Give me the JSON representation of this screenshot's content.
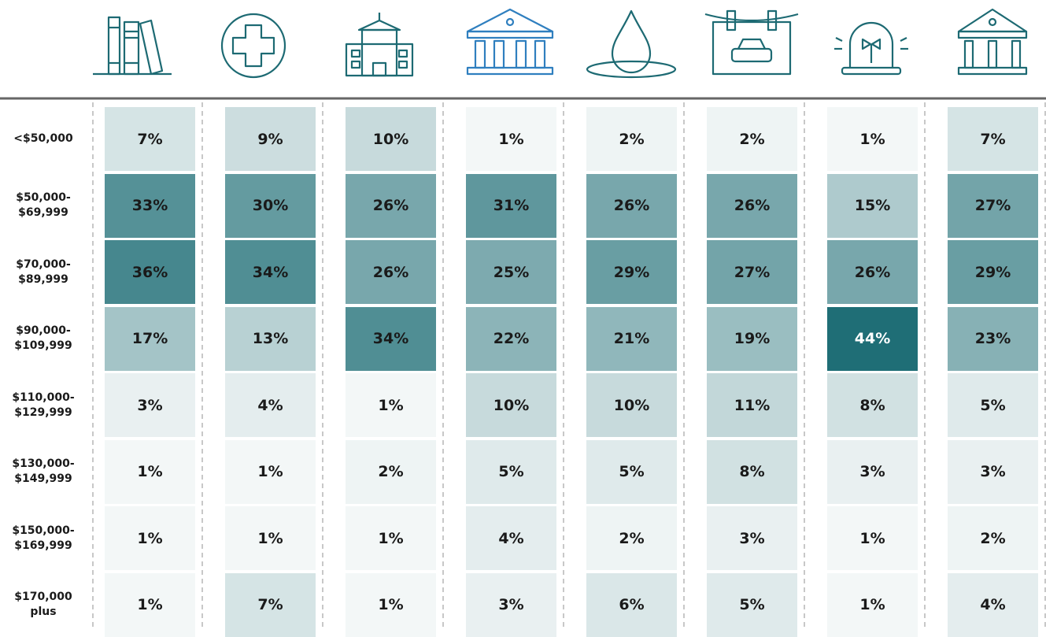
{
  "chart_data": {
    "type": "heatmap",
    "categories": [
      "<$50,000",
      "$50,000-\n$69,999",
      "$70,000-\n$89,999",
      "$90,000-\n$109,999",
      "$110,000-\n$129,999",
      "$130,000-\n$149,999",
      "$150,000-\n$169,999",
      "$170,000\nplus"
    ],
    "values": [
      [
        7,
        9,
        10,
        1,
        2,
        2,
        1,
        7
      ],
      [
        33,
        30,
        26,
        31,
        26,
        26,
        15,
        27
      ],
      [
        36,
        34,
        26,
        25,
        29,
        27,
        26,
        29
      ],
      [
        17,
        13,
        34,
        22,
        21,
        19,
        44,
        23
      ],
      [
        3,
        4,
        1,
        10,
        10,
        11,
        8,
        5
      ],
      [
        1,
        1,
        2,
        5,
        5,
        8,
        3,
        3
      ],
      [
        1,
        1,
        1,
        4,
        2,
        3,
        1,
        2
      ],
      [
        1,
        7,
        1,
        3,
        6,
        5,
        1,
        4
      ]
    ],
    "value_labels": [
      [
        "7%",
        "9%",
        "10%",
        "1%",
        "2%",
        "2%",
        "1%",
        "7%"
      ],
      [
        "33%",
        "30%",
        "26%",
        "31%",
        "26%",
        "26%",
        "15%",
        "27%"
      ],
      [
        "36%",
        "34%",
        "26%",
        "25%",
        "29%",
        "27%",
        "26%",
        "29%"
      ],
      [
        "17%",
        "13%",
        "34%",
        "22%",
        "21%",
        "19%",
        "44%",
        "23%"
      ],
      [
        "3%",
        "4%",
        "1%",
        "10%",
        "10%",
        "11%",
        "8%",
        "5%"
      ],
      [
        "1%",
        "1%",
        "2%",
        "5%",
        "5%",
        "8%",
        "3%",
        "3%"
      ],
      [
        "1%",
        "1%",
        "1%",
        "4%",
        "2%",
        "3%",
        "1%",
        "2%"
      ],
      [
        "1%",
        "7%",
        "1%",
        "3%",
        "6%",
        "5%",
        "1%",
        "4%"
      ]
    ],
    "colors": [
      "#f8fafa",
      "#1f6e76"
    ]
  }
}
